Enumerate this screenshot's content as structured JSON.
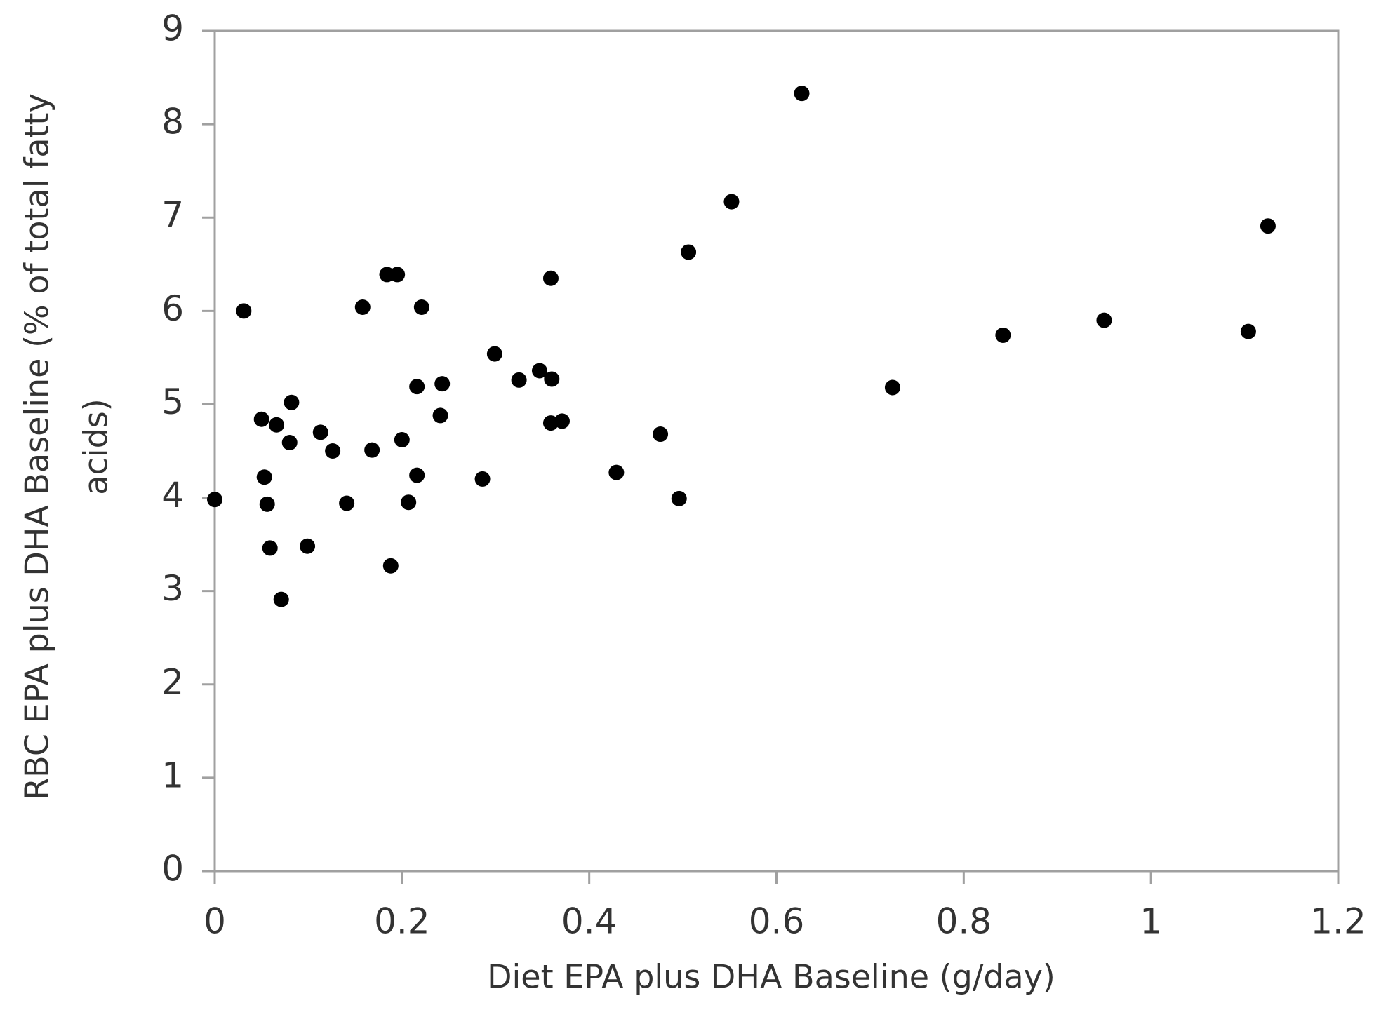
{
  "chart_data": {
    "type": "scatter",
    "x_label": "Diet EPA plus DHA Baseline (g/day)",
    "y_label": [
      "RBC EPA plus DHA Baseline (% of total fatty",
      "acids)"
    ],
    "x": [
      0,
      0.031,
      0.05,
      0.053,
      0.056,
      0.059,
      0.066,
      0.071,
      0.08,
      0.082,
      0.099,
      0.113,
      0.126,
      0.141,
      0.158,
      0.168,
      0.184,
      0.195,
      0.188,
      0.2,
      0.207,
      0.216,
      0.216,
      0.221,
      0.241,
      0.243,
      0.286,
      0.299,
      0.325,
      0.347,
      0.359,
      0.36,
      0.359,
      0.371,
      0.429,
      0.476,
      0.496,
      0.506,
      0.552,
      0.627,
      0.724,
      0.842,
      0.95,
      1.104,
      1.125
    ],
    "values": [
      3.98,
      6.0,
      4.84,
      4.22,
      3.93,
      3.46,
      4.78,
      2.91,
      4.59,
      5.02,
      3.48,
      4.7,
      4.5,
      3.94,
      6.04,
      4.51,
      6.39,
      6.39,
      3.27,
      4.62,
      3.95,
      5.19,
      4.24,
      6.04,
      4.88,
      5.22,
      4.2,
      5.54,
      5.26,
      5.36,
      6.35,
      5.27,
      4.8,
      4.82,
      4.27,
      4.68,
      3.99,
      6.63,
      7.17,
      8.33,
      5.18,
      5.74,
      5.9,
      5.78,
      6.91
    ],
    "color": "#000000",
    "xlim": [
      0,
      1.2
    ],
    "xticks": [
      0,
      0.2,
      0.4,
      0.6,
      0.8,
      1,
      1.2
    ],
    "ylim": [
      0,
      9
    ],
    "yticks": [
      0,
      1,
      2,
      3,
      4,
      5,
      6,
      7,
      8,
      9
    ],
    "grid": false
  }
}
